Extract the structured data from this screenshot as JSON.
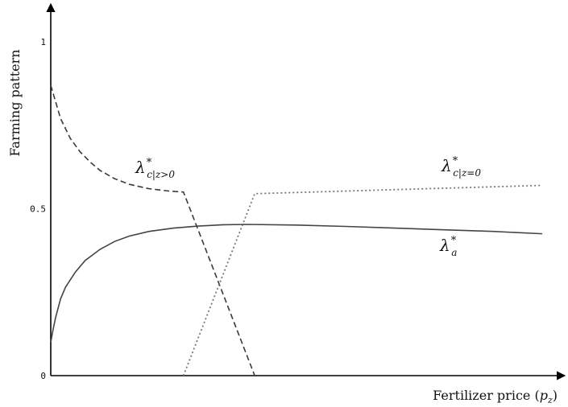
{
  "chart_data": {
    "type": "line",
    "title": "",
    "xlabel": "Fertilizer price (p_z)",
    "xlabel_parts": {
      "text": "Fertilizer price (",
      "var": "p",
      "sub": "z",
      "close": ")"
    },
    "ylabel": "Farming pattern",
    "xlim": [
      0,
      1
    ],
    "ylim": [
      0,
      1
    ],
    "yticks": [
      {
        "value": 0,
        "label": "0"
      },
      {
        "value": 0.5,
        "label": "0.5"
      },
      {
        "value": 1,
        "label": "1"
      }
    ],
    "x_ticks_labeled": false,
    "grid": false,
    "legend": "inline labels",
    "series": [
      {
        "id": "lambda_c_z_pos",
        "label_main": "λ",
        "label_sup": "*",
        "label_sub": "c|z>0",
        "style": "dashed",
        "color": "#3a3a3a",
        "x": [
          0,
          0.02,
          0.04,
          0.06,
          0.08,
          0.1,
          0.13,
          0.16,
          0.2,
          0.24,
          0.27,
          0.415
        ],
        "y": [
          0.87,
          0.77,
          0.71,
          0.67,
          0.64,
          0.615,
          0.59,
          0.573,
          0.56,
          0.553,
          0.55,
          0.0
        ]
      },
      {
        "id": "lambda_c_z0",
        "label_main": "λ",
        "label_sup": "*",
        "label_sub": "c|z=0",
        "style": "dotted",
        "color": "#777777",
        "x": [
          0.27,
          0.415,
          1.0
        ],
        "y": [
          0.0,
          0.545,
          0.57
        ]
      },
      {
        "id": "lambda_a",
        "label_main": "λ",
        "label_sup": "*",
        "label_sub": "a",
        "style": "solid",
        "color": "#444444",
        "x": [
          0,
          0.005,
          0.01,
          0.02,
          0.03,
          0.05,
          0.07,
          0.1,
          0.13,
          0.16,
          0.2,
          0.25,
          0.3,
          0.35,
          0.4,
          0.5,
          0.6,
          0.7,
          0.8,
          0.9,
          1.0
        ],
        "y": [
          0.1,
          0.14,
          0.175,
          0.23,
          0.265,
          0.31,
          0.345,
          0.378,
          0.402,
          0.418,
          0.432,
          0.442,
          0.448,
          0.452,
          0.453,
          0.451,
          0.447,
          0.442,
          0.437,
          0.432,
          0.425
        ]
      }
    ]
  }
}
